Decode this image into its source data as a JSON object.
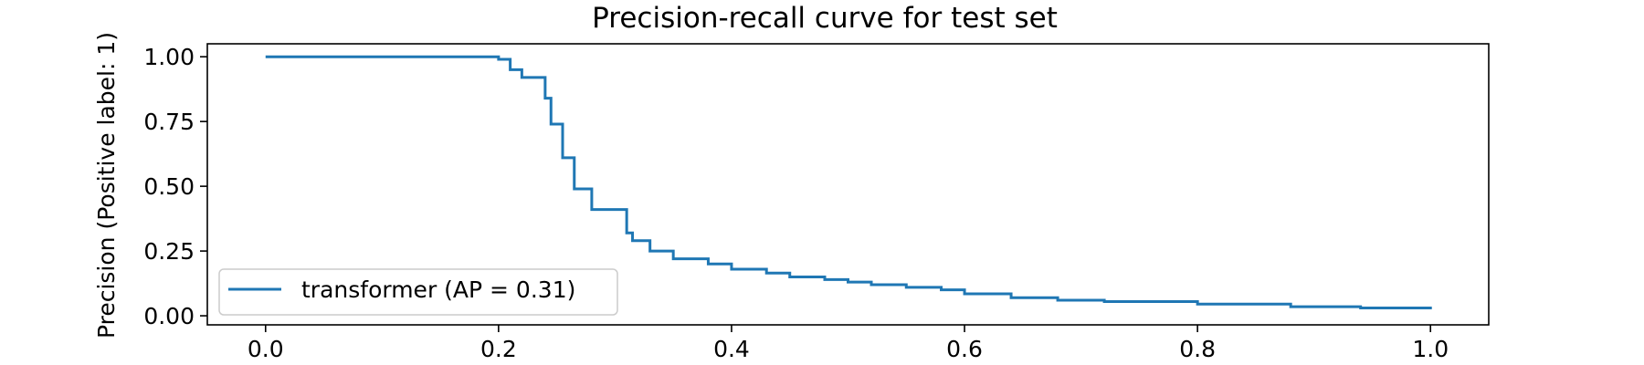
{
  "chart_data": {
    "type": "line",
    "title": "Precision-recall curve for test set",
    "xlabel": "",
    "ylabel": "Precision (Positive label: 1)",
    "xlim": [
      -0.05,
      1.05
    ],
    "ylim": [
      -0.035,
      1.05
    ],
    "xticks": [
      0.0,
      0.2,
      0.4,
      0.6,
      0.8,
      1.0
    ],
    "xtick_labels": [
      "0.0",
      "0.2",
      "0.4",
      "0.6",
      "0.8",
      "1.0"
    ],
    "yticks": [
      0.0,
      0.25,
      0.5,
      0.75,
      1.0
    ],
    "ytick_labels": [
      "0.00",
      "0.25",
      "0.50",
      "0.75",
      "1.00"
    ],
    "grid": false,
    "legend": {
      "position": "lower-left",
      "entries": [
        "transformer (AP = 0.31)"
      ]
    },
    "colors": {
      "series": "#1f77b4",
      "axes": "#000000",
      "legend_border": "#cccccc"
    },
    "series": [
      {
        "name": "transformer (AP = 0.31)",
        "drawstyle": "steps-post",
        "x": [
          0.0,
          0.2,
          0.21,
          0.22,
          0.24,
          0.245,
          0.255,
          0.265,
          0.28,
          0.31,
          0.315,
          0.33,
          0.35,
          0.38,
          0.4,
          0.43,
          0.45,
          0.48,
          0.5,
          0.52,
          0.55,
          0.58,
          0.6,
          0.64,
          0.68,
          0.72,
          0.8,
          0.88,
          0.94,
          1.0
        ],
        "y": [
          1.0,
          0.99,
          0.95,
          0.92,
          0.84,
          0.74,
          0.61,
          0.49,
          0.41,
          0.32,
          0.29,
          0.25,
          0.22,
          0.2,
          0.18,
          0.165,
          0.15,
          0.14,
          0.13,
          0.12,
          0.11,
          0.1,
          0.085,
          0.07,
          0.06,
          0.055,
          0.045,
          0.035,
          0.03,
          0.025
        ]
      }
    ]
  }
}
